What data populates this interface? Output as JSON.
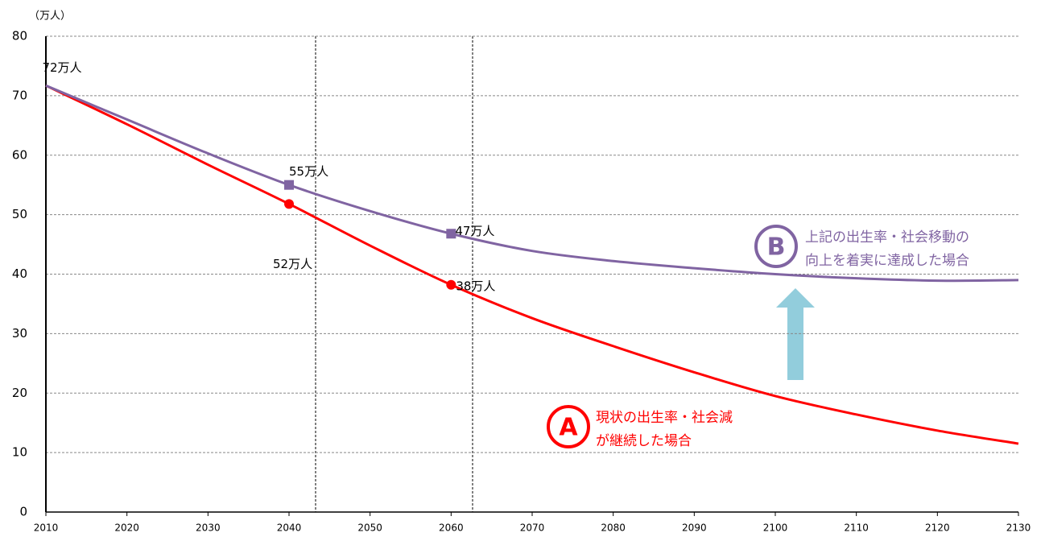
{
  "chart_data": {
    "type": "line",
    "y_unit_label": "（万人）",
    "x": [
      2010,
      2020,
      2030,
      2040,
      2050,
      2060,
      2070,
      2080,
      2090,
      2100,
      2110,
      2120,
      2130
    ],
    "xlim": [
      2010,
      2130
    ],
    "xticks": [
      2010,
      2020,
      2030,
      2040,
      2050,
      2060,
      2070,
      2080,
      2090,
      2100,
      2110,
      2120,
      2130
    ],
    "ylim": [
      0,
      80
    ],
    "yticks": [
      0,
      10,
      20,
      30,
      40,
      50,
      60,
      70,
      80
    ],
    "grid": true,
    "series": [
      {
        "name": "A",
        "color": "#ff0000",
        "marker": "circle",
        "values": [
          71.7,
          65.2,
          58.4,
          51.8,
          44.8,
          38.2,
          32.6,
          27.9,
          23.5,
          19.5,
          16.4,
          13.7,
          11.5
        ],
        "value_labels": [
          null,
          null,
          null,
          "52万人",
          null,
          "38万人",
          null,
          null,
          null,
          null,
          null,
          null,
          null
        ]
      },
      {
        "name": "B",
        "color": "#8064a2",
        "marker": "square",
        "values": [
          71.7,
          66.0,
          60.3,
          55.0,
          50.6,
          46.8,
          43.9,
          42.2,
          41.0,
          40.0,
          39.3,
          38.9,
          39.0
        ],
        "value_labels": [
          "72万人",
          null,
          null,
          "55万人",
          null,
          "47万人",
          null,
          null,
          null,
          null,
          null,
          null,
          null
        ]
      }
    ],
    "annotations": [
      {
        "series_name": "A",
        "lines": [
          "現状の出生率・社会減",
          "が継続した場合"
        ]
      },
      {
        "series_name": "B",
        "lines": [
          "上記の出生率・社会移動の",
          "向上を着実に達成した場合"
        ]
      }
    ]
  }
}
